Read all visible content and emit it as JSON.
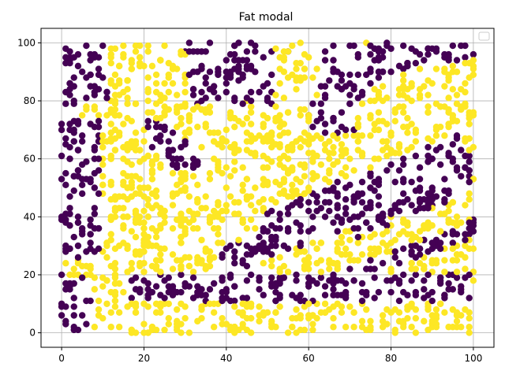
{
  "chart_data": {
    "type": "scatter",
    "title": "Fat modal",
    "xlabel": "",
    "ylabel": "",
    "xlim": [
      -5,
      105
    ],
    "ylim": [
      -5,
      105
    ],
    "x_ticks": [
      "0",
      "20",
      "40",
      "60",
      "80",
      "100"
    ],
    "y_ticks": [
      "0",
      "20",
      "40",
      "60",
      "80",
      "100"
    ],
    "grid": true,
    "legend": {
      "placement": "top-right",
      "entries": []
    },
    "series": [
      {
        "label_value": 0,
        "color": "#440154",
        "marker": "circle"
      },
      {
        "label_value": 1,
        "color": "#fde725",
        "marker": "circle"
      }
    ],
    "point_count": 2000,
    "pattern": "uniform random points in [0,100]x[0,100]; color set by band membership: purple along the edges (x<10, y>78, y 10-20) and along rising diagonal stripes, yellow elsewhere",
    "sample_points": [
      {
        "x": 2,
        "y": 95,
        "c": 0
      },
      {
        "x": 5,
        "y": 90,
        "c": 0
      },
      {
        "x": 10,
        "y": 99,
        "c": 0
      },
      {
        "x": 30,
        "y": 97,
        "c": 0
      },
      {
        "x": 45,
        "y": 92,
        "c": 0
      },
      {
        "x": 55,
        "y": 97,
        "c": 0
      },
      {
        "x": 80,
        "y": 90,
        "c": 0
      },
      {
        "x": 90,
        "y": 98,
        "c": 0
      },
      {
        "x": 2,
        "y": 60,
        "c": 0
      },
      {
        "x": 5,
        "y": 35,
        "c": 0
      },
      {
        "x": 8,
        "y": 50,
        "c": 0
      },
      {
        "x": 0,
        "y": 20,
        "c": 0
      },
      {
        "x": 20,
        "y": 18,
        "c": 0
      },
      {
        "x": 40,
        "y": 15,
        "c": 0
      },
      {
        "x": 60,
        "y": 17,
        "c": 0
      },
      {
        "x": 80,
        "y": 18,
        "c": 0
      },
      {
        "x": 98,
        "y": 19,
        "c": 0
      },
      {
        "x": 45,
        "y": 30,
        "c": 0
      },
      {
        "x": 60,
        "y": 42,
        "c": 0
      },
      {
        "x": 75,
        "y": 50,
        "c": 0
      },
      {
        "x": 90,
        "y": 60,
        "c": 0
      },
      {
        "x": 60,
        "y": 75,
        "c": 0
      },
      {
        "x": 70,
        "y": 82,
        "c": 0
      },
      {
        "x": 85,
        "y": 30,
        "c": 0
      },
      {
        "x": 25,
        "y": 70,
        "c": 0
      },
      {
        "x": 28,
        "y": 60,
        "c": 0
      },
      {
        "x": 15,
        "y": 95,
        "c": 1
      },
      {
        "x": 20,
        "y": 70,
        "c": 1
      },
      {
        "x": 30,
        "y": 50,
        "c": 1
      },
      {
        "x": 50,
        "y": 60,
        "c": 1
      },
      {
        "x": 45,
        "y": 80,
        "c": 1
      },
      {
        "x": 70,
        "y": 60,
        "c": 1
      },
      {
        "x": 85,
        "y": 80,
        "c": 1
      },
      {
        "x": 95,
        "y": 45,
        "c": 1
      },
      {
        "x": 60,
        "y": 5,
        "c": 1
      },
      {
        "x": 30,
        "y": 5,
        "c": 1
      },
      {
        "x": 80,
        "y": 40,
        "c": 1
      },
      {
        "x": 15,
        "y": 40,
        "c": 1
      }
    ]
  }
}
